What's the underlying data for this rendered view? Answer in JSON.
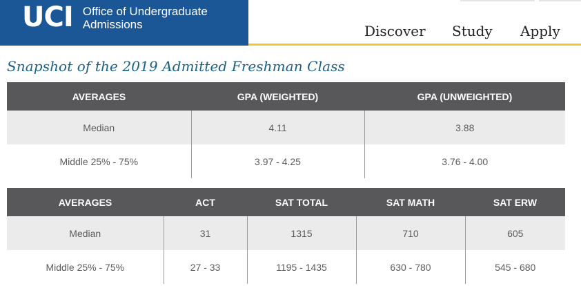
{
  "header": {
    "logo_mark": "UCI",
    "logo_text_line1": "Office of Undergraduate",
    "logo_text_line2": "Admissions",
    "nav": [
      "Discover",
      "Study",
      "Apply"
    ],
    "colors": {
      "brand_blue": "#1b5797",
      "accent_gold": "#f1c63a"
    }
  },
  "title": "Snapshot of the 2019 Admitted Freshman Class",
  "gpa_table": {
    "headers": [
      "AVERAGES",
      "GPA (WEIGHTED)",
      "GPA (UNWEIGHTED)"
    ],
    "rows": [
      [
        "Median",
        "4.11",
        "3.88"
      ],
      [
        "Middle 25% - 75%",
        "3.97 - 4.25",
        "3.76 - 4.00"
      ]
    ]
  },
  "test_table": {
    "headers": [
      "AVERAGES",
      "ACT",
      "SAT TOTAL",
      "SAT MATH",
      "SAT ERW"
    ],
    "rows": [
      [
        "Median",
        "31",
        "1315",
        "710",
        "605"
      ],
      [
        "Middle 25% - 75%",
        "27 - 33",
        "1195 - 1435",
        "630 - 780",
        "545 - 680"
      ]
    ]
  }
}
